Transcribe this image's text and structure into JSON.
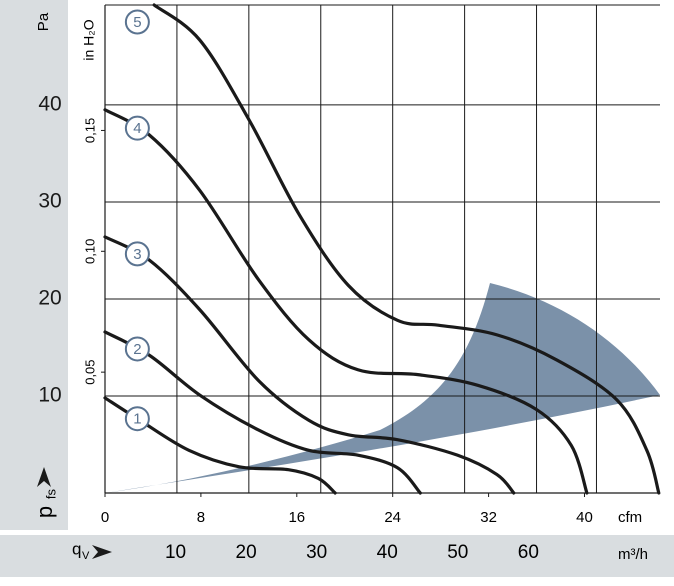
{
  "chart_data": {
    "type": "line",
    "y_label": "Pa",
    "y2_label": "in H₂O",
    "x_label": "cfm",
    "x2_label": "m³/h",
    "x2_symbol": "q",
    "x2_symbol_sub": "V",
    "y_symbol": "p",
    "y_symbol_sub": "fs",
    "xlim": [
      0,
      46.3
    ],
    "xticks": [
      0,
      8,
      16,
      24,
      32,
      40
    ],
    "x2lim": [
      0,
      78.66
    ],
    "x2ticks": [
      10,
      20,
      30,
      40,
      50,
      60
    ],
    "ylim": [
      0,
      50.3
    ],
    "yticks": [
      10,
      20,
      30,
      40
    ],
    "y2lim": [
      0,
      0.2019
    ],
    "y2ticks": [
      {
        "value": 0.05,
        "label": "0,05"
      },
      {
        "value": 0.1,
        "label": "0,10"
      },
      {
        "value": 0.15,
        "label": "0,15"
      }
    ],
    "xgrid": [
      6,
      12,
      18,
      24,
      30,
      36,
      41
    ],
    "grid": true,
    "series": [
      {
        "name": "1",
        "color": "#1a1a1a",
        "x": [
          0,
          2.9,
          7,
          11.2,
          15.3,
          17.8,
          19.2
        ],
        "values": [
          9.8,
          7.5,
          4.4,
          2.7,
          2.4,
          1.5,
          0
        ]
      },
      {
        "name": "2",
        "color": "#1a1a1a",
        "x": [
          0,
          3.7,
          7.9,
          12.8,
          17,
          21.1,
          24.4,
          26.3
        ],
        "values": [
          16.6,
          14.2,
          10.1,
          6.5,
          4.4,
          3.9,
          2.6,
          0
        ]
      },
      {
        "name": "3",
        "color": "#1a1a1a",
        "x": [
          0,
          3.7,
          7.9,
          12.8,
          17,
          20.3,
          24.4,
          29.4,
          32.7,
          34.1
        ],
        "values": [
          26.4,
          24,
          18.9,
          11.6,
          7.5,
          6,
          5.5,
          3.9,
          1.9,
          0
        ]
      },
      {
        "name": "4",
        "color": "#1a1a1a",
        "x": [
          0,
          3.7,
          7.9,
          12.8,
          17,
          21.1,
          26.1,
          31.1,
          36,
          38.9,
          40.2
        ],
        "values": [
          39.5,
          36.9,
          31.2,
          22,
          15.8,
          12.7,
          12.2,
          11.1,
          8.6,
          4.9,
          0
        ]
      },
      {
        "name": "5",
        "color": "#1a1a1a",
        "x": [
          4.1,
          7.9,
          12,
          16.2,
          20.3,
          24.4,
          27.8,
          32.7,
          37.7,
          42.7,
          45.2,
          46.2
        ],
        "values": [
          50.3,
          46.7,
          38.5,
          28.7,
          21.4,
          17.8,
          17.3,
          16.3,
          13.7,
          9.6,
          4.4,
          0
        ]
      }
    ]
  }
}
